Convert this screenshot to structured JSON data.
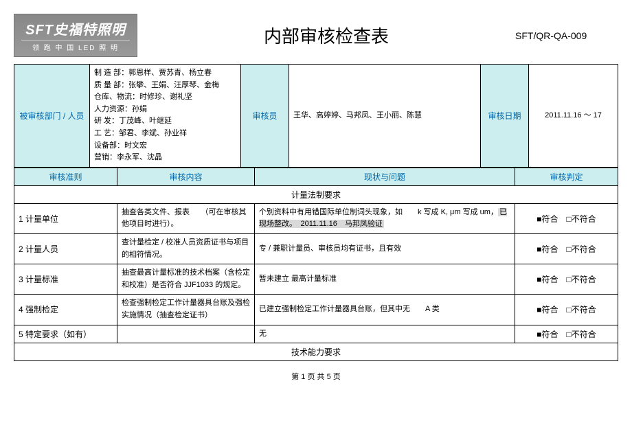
{
  "logo": {
    "main": "SFT史福特照明",
    "sub": "领 跑 中 国 LED 照 明"
  },
  "title": "内部审核检查表",
  "doc_number": "SFT/QR-QA-009",
  "info": {
    "dept_label": "被审核部门 / 人员",
    "dept_lines": [
      "制 造 部：郭恩样、贾苏青、杨立春",
      "质 量 部：张攀、王娟、汪厚琴、金梅",
      "仓库、物流：时修珍、谢礼坚",
      "人力资源：孙娟",
      "研 发：丁茂峰、叶继延",
      "工 艺：邹君、李斌、孙业祥",
      "设备部：时文宏",
      "营销：李永军、沈晶"
    ],
    "auditor_label": "审核员",
    "auditors": "王华、高婷婷、马邦凤、王小丽、陈慧",
    "date_label": "审核日期",
    "date": "2011.11.16 ～ 17"
  },
  "columns": {
    "criteria": "审核准则",
    "content": "审核内容",
    "status": "现状与问题",
    "judgment": "审核判定"
  },
  "sections": [
    {
      "type": "section",
      "title": "计量法制要求"
    },
    {
      "type": "row",
      "no": "1",
      "criteria": "计量单位",
      "content": "抽查各类文件、报表　　（可在审核其他项目时进行）。",
      "status_pre": "个别资料中有用错国际单位制词头现象，如　　k 写成 K, μm 写成 um，",
      "status_hl": "已现场整改。　2011.11.16　马邦凤验证",
      "judge_fit": "■符合",
      "judge_unfit": "□不符合"
    },
    {
      "type": "row",
      "no": "2",
      "criteria": "计量人员",
      "content": "查计量检定 / 校准人员资质证书与项目的相符情况。",
      "status": "专 / 兼职计量员、审核员均有证书，且有效",
      "judge_fit": "■符合",
      "judge_unfit": "□不符合"
    },
    {
      "type": "row",
      "no": "3",
      "criteria": "计量标准",
      "content": "抽查最高计量标准的技术档案（含检定和校准）是否符合 JJF1033 的规定。",
      "status": "暂未建立 最高计量标准",
      "judge_fit": "■符合",
      "judge_unfit": "□不符合"
    },
    {
      "type": "row",
      "no": "4",
      "criteria": "强制检定",
      "content": "检查强制检定工作计量器具台账及强检实施情况（抽查检定证书）",
      "status": "已建立强制检定工作计量器具台账，但其中无　　A 类",
      "judge_fit": "■符合",
      "judge_unfit": "□不符合"
    },
    {
      "type": "row",
      "no": "5",
      "criteria": "特定要求（如有）",
      "content": "",
      "status": "无",
      "judge_fit": "■符合",
      "judge_unfit": "□不符合"
    },
    {
      "type": "section",
      "title": "技术能力要求"
    }
  ],
  "footer": "第 1 页 共 5 页"
}
